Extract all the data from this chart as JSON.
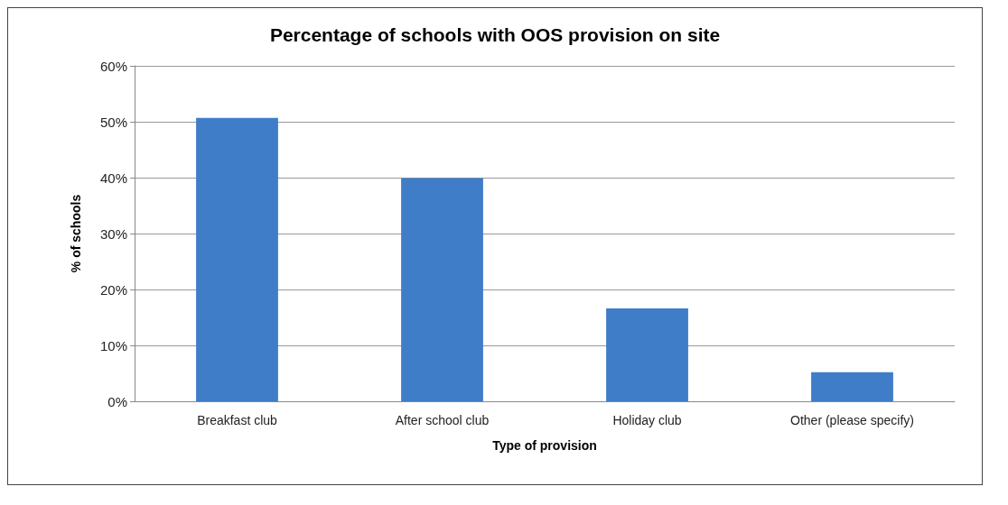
{
  "chart_data": {
    "type": "bar",
    "title": "Percentage of schools with OOS provision on site",
    "xlabel": "Type of provision",
    "ylabel": "% of schools",
    "categories": [
      "Breakfast club",
      "After school club",
      "Holiday club",
      "Other (please specify)"
    ],
    "values": [
      50.7,
      39.9,
      16.6,
      5.2
    ],
    "color": "#3f7dc8",
    "ylim": [
      0,
      60
    ],
    "yticks": [
      {
        "value": 0,
        "label": "0%"
      },
      {
        "value": 10,
        "label": "10%"
      },
      {
        "value": 20,
        "label": "20%"
      },
      {
        "value": 30,
        "label": "30%"
      },
      {
        "value": 40,
        "label": "40%"
      },
      {
        "value": 50,
        "label": "50%"
      },
      {
        "value": 60,
        "label": "60%"
      }
    ],
    "grid": "y"
  }
}
